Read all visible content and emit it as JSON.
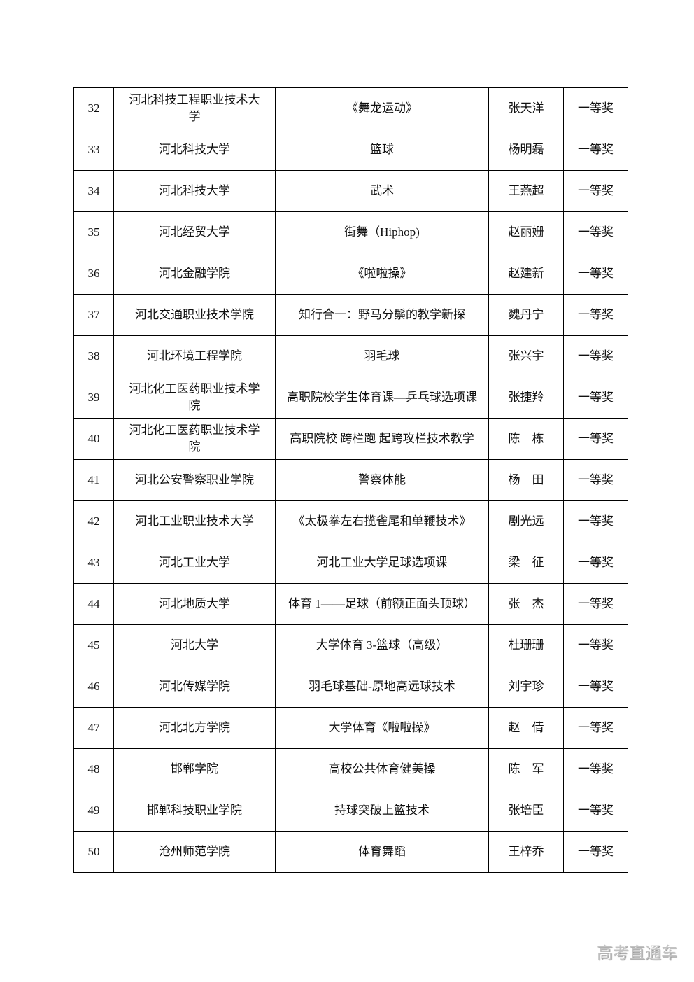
{
  "watermark": "高考直通车",
  "table": {
    "rows": [
      {
        "no": "32",
        "school": "河北科技工程职业技术大学",
        "course": "《舞龙运动》",
        "teacher": "张天洋",
        "award": "一等奖"
      },
      {
        "no": "33",
        "school": "河北科技大学",
        "course": "篮球",
        "teacher": "杨明磊",
        "award": "一等奖"
      },
      {
        "no": "34",
        "school": "河北科技大学",
        "course": "武术",
        "teacher": "王燕超",
        "award": "一等奖"
      },
      {
        "no": "35",
        "school": "河北经贸大学",
        "course": "街舞（Hiphop)",
        "teacher": "赵丽姗",
        "award": "一等奖"
      },
      {
        "no": "36",
        "school": "河北金融学院",
        "course": "《啦啦操》",
        "teacher": "赵建新",
        "award": "一等奖"
      },
      {
        "no": "37",
        "school": "河北交通职业技术学院",
        "course": "知行合一：野马分鬃的教学新探",
        "teacher": "魏丹宁",
        "award": "一等奖"
      },
      {
        "no": "38",
        "school": "河北环境工程学院",
        "course": "羽毛球",
        "teacher": "张兴宇",
        "award": "一等奖"
      },
      {
        "no": "39",
        "school": "河北化工医药职业技术学院",
        "course": "高职院校学生体育课—乒乓球选项课",
        "teacher": "张捷羚",
        "award": "一等奖"
      },
      {
        "no": "40",
        "school": "河北化工医药职业技术学院",
        "course": "高职院校 跨栏跑 起跨攻栏技术教学",
        "teacher": "陈　栋",
        "award": "一等奖"
      },
      {
        "no": "41",
        "school": "河北公安警察职业学院",
        "course": "警察体能",
        "teacher": "杨　田",
        "award": "一等奖"
      },
      {
        "no": "42",
        "school": "河北工业职业技术大学",
        "course": "《太极拳左右揽雀尾和单鞭技术》",
        "teacher": "剧光远",
        "award": "一等奖"
      },
      {
        "no": "43",
        "school": "河北工业大学",
        "course": "河北工业大学足球选项课",
        "teacher": "梁　征",
        "award": "一等奖"
      },
      {
        "no": "44",
        "school": "河北地质大学",
        "course": "体育 1——足球（前额正面头顶球）",
        "teacher": "张　杰",
        "award": "一等奖"
      },
      {
        "no": "45",
        "school": "河北大学",
        "course": "大学体育 3-篮球（高级）",
        "teacher": "杜珊珊",
        "award": "一等奖"
      },
      {
        "no": "46",
        "school": "河北传媒学院",
        "course": "羽毛球基础-原地高远球技术",
        "teacher": "刘宇珍",
        "award": "一等奖"
      },
      {
        "no": "47",
        "school": "河北北方学院",
        "course": "大学体育《啦啦操》",
        "teacher": "赵　倩",
        "award": "一等奖"
      },
      {
        "no": "48",
        "school": "邯郸学院",
        "course": "高校公共体育健美操",
        "teacher": "陈　军",
        "award": "一等奖"
      },
      {
        "no": "49",
        "school": "邯郸科技职业学院",
        "course": "持球突破上篮技术",
        "teacher": "张培臣",
        "award": "一等奖"
      },
      {
        "no": "50",
        "school": "沧州师范学院",
        "course": "体育舞蹈",
        "teacher": "王梓乔",
        "award": "一等奖"
      }
    ]
  }
}
